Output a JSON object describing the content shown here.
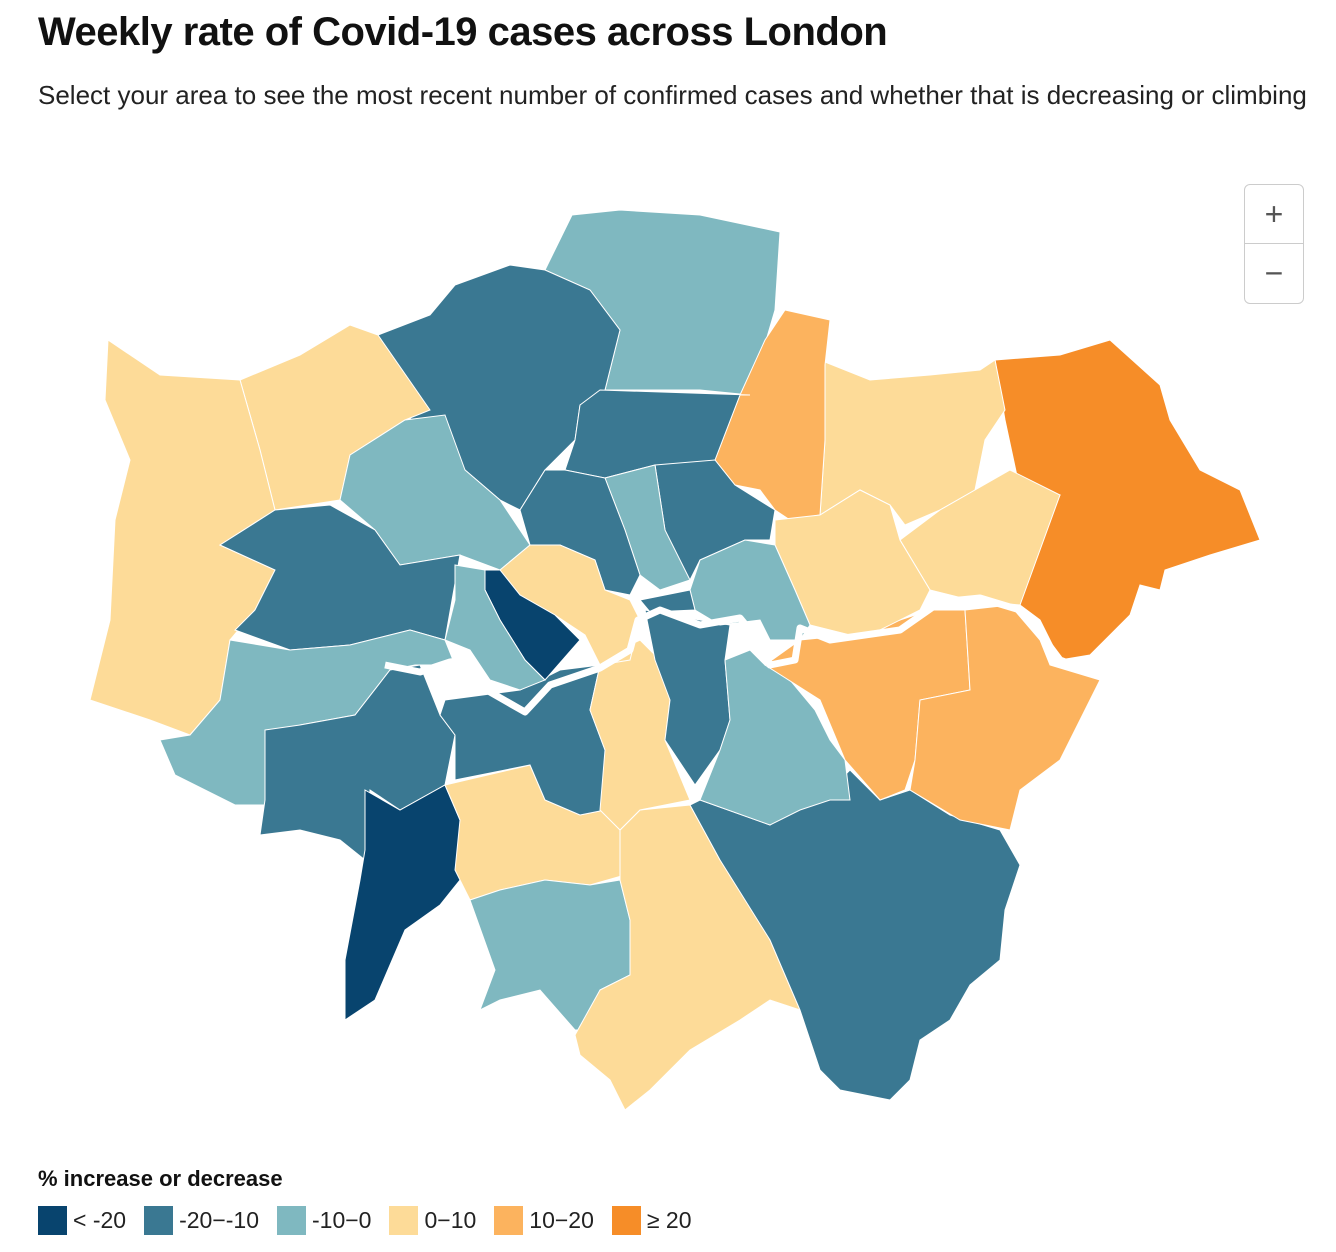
{
  "header": {
    "title": "Weekly rate of Covid-19 cases across London",
    "subtitle": "Select your area to see the most recent number of confirmed cases and whether that is decreasing or climbing"
  },
  "zoom": {
    "in": "+",
    "out": "−"
  },
  "legend": {
    "title": "% increase or decrease",
    "items": [
      {
        "label": "< -20",
        "color": "#08446e"
      },
      {
        "label": "-20−-10",
        "color": "#3a7892"
      },
      {
        "label": "-10−0",
        "color": "#7fb8c0"
      },
      {
        "label": "0−10",
        "color": "#fddb98"
      },
      {
        "label": "10−20",
        "color": "#fcb35e"
      },
      {
        "label": "≥ 20",
        "color": "#f68d28"
      }
    ]
  }
}
